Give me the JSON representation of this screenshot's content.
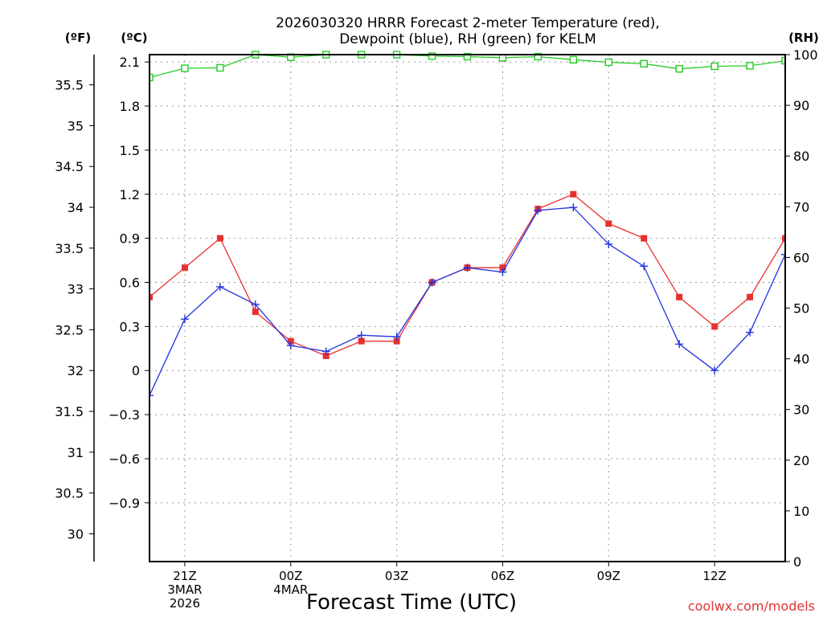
{
  "chart_data": {
    "type": "line",
    "title_lines": [
      "2026030320 HRRR Forecast 2-meter Temperature (red),",
      "Dewpoint (blue), RH (green) for KELM"
    ],
    "units": {
      "fahrenheit": "(ºF)",
      "celsius": "(ºC)",
      "rh": "(RH)"
    },
    "xlabel": "Forecast Time (UTC)",
    "credit": "coolwx.com/models",
    "x_hours": [
      20,
      21,
      22,
      23,
      24,
      25,
      26,
      27,
      28,
      29,
      30,
      31,
      32,
      33,
      34,
      35,
      36,
      37,
      38
    ],
    "xlim": [
      20,
      38
    ],
    "x_ticks": [
      {
        "hour": 21,
        "lines": [
          "21Z",
          "3MAR",
          "2026"
        ]
      },
      {
        "hour": 24,
        "lines": [
          "00Z",
          "4MAR"
        ]
      },
      {
        "hour": 27,
        "lines": [
          "03Z"
        ]
      },
      {
        "hour": 30,
        "lines": [
          "06Z"
        ]
      },
      {
        "hour": 33,
        "lines": [
          "09Z"
        ]
      },
      {
        "hour": 36,
        "lines": [
          "12Z"
        ]
      }
    ],
    "celsius_axis": {
      "ylim": [
        -1.3,
        2.15
      ],
      "ticks": [
        "-0.9",
        "-0.6",
        "-0.3",
        "0",
        "0.3",
        "0.6",
        "0.9",
        "1.2",
        "1.5",
        "1.8",
        "2.1"
      ]
    },
    "fahrenheit_axis": {
      "ylim": [
        29.66,
        35.87
      ],
      "ticks": [
        "30",
        "30.5",
        "31",
        "31.5",
        "32",
        "32.5",
        "33",
        "33.5",
        "34",
        "34.5",
        "35",
        "35.5"
      ]
    },
    "rh_axis": {
      "ylim": [
        0,
        100
      ],
      "ticks": [
        "0",
        "10",
        "20",
        "30",
        "40",
        "50",
        "60",
        "70",
        "80",
        "90",
        "100"
      ]
    },
    "series": [
      {
        "name": "2-meter Temperature",
        "color": "#e83030",
        "axis": "celsius",
        "marker": "filled-square",
        "values": [
          0.5,
          0.7,
          0.9,
          0.4,
          0.2,
          0.1,
          0.2,
          0.2,
          0.6,
          0.7,
          0.7,
          1.1,
          1.2,
          1.0,
          0.9,
          0.5,
          0.3,
          0.5,
          0.9
        ]
      },
      {
        "name": "Dewpoint",
        "color": "#2233dd",
        "axis": "celsius",
        "marker": "plus",
        "values": [
          -0.17,
          0.35,
          0.57,
          0.45,
          0.17,
          0.13,
          0.24,
          0.23,
          0.6,
          0.7,
          0.67,
          1.09,
          1.11,
          0.86,
          0.71,
          0.18,
          0.0,
          0.26,
          0.79
        ]
      },
      {
        "name": "RH",
        "color": "#22cc22",
        "axis": "rh",
        "marker": "open-square",
        "values": [
          95.5,
          97.3,
          97.4,
          100.0,
          99.5,
          100.0,
          100.0,
          100.0,
          99.7,
          99.6,
          99.4,
          99.6,
          99.0,
          98.5,
          98.2,
          97.2,
          97.7,
          97.8,
          98.8
        ]
      }
    ]
  }
}
